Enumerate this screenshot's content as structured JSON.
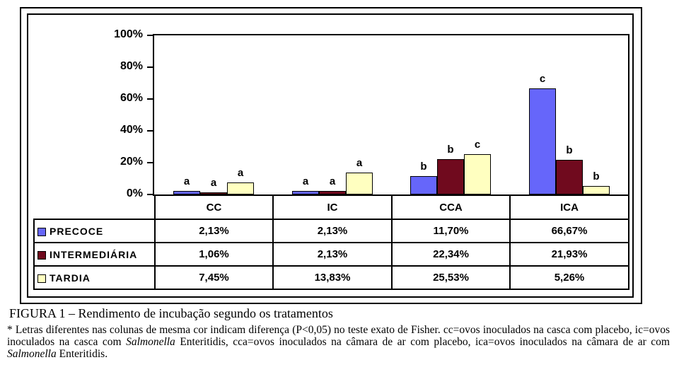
{
  "figure": {
    "caption_title": "FIGURA 1 – Rendimento de incubação segundo os tratamentos",
    "footnote": {
      "seg1": "* Letras diferentes nas colunas de mesma cor indicam diferença (P<0,05) no teste exato de Fisher. cc=ovos inoculados na casca com placebo, ic=ovos inoculados na casca com ",
      "ital1": "Salmonella",
      "seg2": " Enteritidis, cca=ovos inoculados na câmara de ar com placebo, ica=ovos inoculados na câmara de ar com ",
      "ital2": "Salmonella",
      "seg3": " Enteritidis."
    }
  },
  "chart_data": {
    "type": "bar",
    "title": "",
    "xlabel": "",
    "ylabel": "",
    "categories": [
      "CC",
      "IC",
      "CCA",
      "ICA"
    ],
    "series": [
      {
        "name": "PRECOCE",
        "color": "#6666FA",
        "values": [
          2.13,
          2.13,
          11.7,
          66.67
        ],
        "display": [
          "2,13%",
          "2,13%",
          "11,70%",
          "66,67%"
        ],
        "letters": [
          "a",
          "a",
          "b",
          "c"
        ]
      },
      {
        "name": "INTERMEDIÁRIA",
        "color": "#700A1E",
        "values": [
          1.06,
          2.13,
          22.34,
          21.93
        ],
        "display": [
          "1,06%",
          "2,13%",
          "22,34%",
          "21,93%"
        ],
        "letters": [
          "a",
          "a",
          "b",
          "b"
        ]
      },
      {
        "name": "TARDIA",
        "color": "#FFFFC0",
        "values": [
          7.45,
          13.83,
          25.53,
          5.26
        ],
        "display": [
          "7,45%",
          "13,83%",
          "25,53%",
          "5,26%"
        ],
        "letters": [
          "a",
          "a",
          "c",
          "b"
        ]
      }
    ],
    "y_ticks": [
      "100%",
      "80%",
      "60%",
      "40%",
      "20%",
      "0%"
    ],
    "ylim": [
      0,
      100
    ],
    "grid": false,
    "legend_position": "data-table-left-column"
  }
}
